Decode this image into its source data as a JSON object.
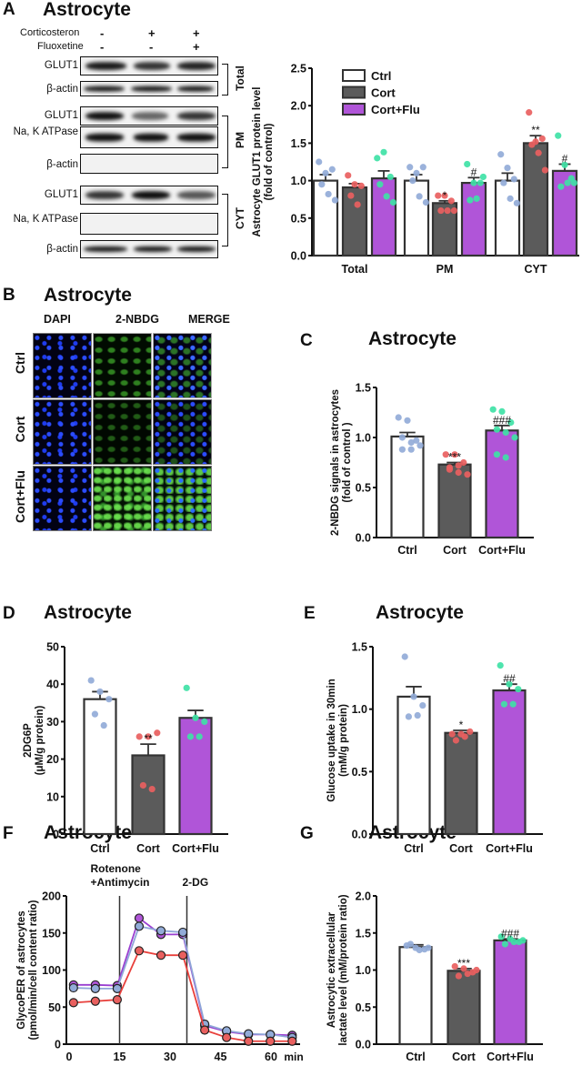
{
  "panels": {
    "A": {
      "letter": "A",
      "title": "Astrocyte"
    },
    "B": {
      "letter": "B",
      "title": "Astrocyte"
    },
    "C": {
      "letter": "C",
      "title": "Astrocyte"
    },
    "D": {
      "letter": "D",
      "title": "Astrocyte"
    },
    "E": {
      "letter": "E",
      "title": "Astrocyte"
    },
    "F": {
      "letter": "F",
      "title": "Astrocyte"
    },
    "G": {
      "letter": "G",
      "title": "Astrocyte"
    }
  },
  "western_blot": {
    "treatments": [
      {
        "label": "Corticosteron",
        "signs": [
          "-",
          "+",
          "+"
        ]
      },
      {
        "label": "Fluoxetine",
        "signs": [
          "-",
          "-",
          "+"
        ]
      }
    ],
    "rows": [
      "GLUT1",
      "β-actin",
      "GLUT1",
      "Na, K ATPase",
      "β-actin",
      "GLUT1",
      "Na, K ATPase",
      "β-actin"
    ],
    "fractions": [
      "Total",
      "PM",
      "CYT"
    ]
  },
  "micrographs": {
    "columns": [
      "DAPI",
      "2-NBDG",
      "MERGE"
    ],
    "rows": [
      "Ctrl",
      "Cort",
      "Cort+Flu"
    ]
  },
  "colors": {
    "ctrl_bar": "#ffffff",
    "cort_bar": "#5b5b5b",
    "flu_bar": "#b055d8",
    "ctrl_dot": "#92abd8",
    "cort_dot": "#e9605f",
    "flu_dot": "#3fe2a6",
    "line_ctrl": "#8fa6d8",
    "line_cort": "#e8403c",
    "line_flu": "#9a3ed0"
  },
  "chart_data": [
    {
      "id": "A",
      "type": "bar",
      "ylabel": "Astrocyte GLUT1 protein level\n(fold of control)",
      "ylim": [
        0,
        2.5
      ],
      "yticks": [
        "0.0",
        "0.5",
        "1.0",
        "1.5",
        "2.0",
        "2.5"
      ],
      "categories": [
        "Total",
        "PM",
        "CYT"
      ],
      "legend": {
        "position": "top-left",
        "entries": [
          "Ctrl",
          "Cort",
          "Cort+Flu"
        ]
      },
      "series": [
        {
          "name": "Ctrl",
          "values": [
            1.0,
            1.0,
            1.0
          ],
          "sem": [
            0.08,
            0.08,
            0.1
          ],
          "sig": [
            "",
            "",
            ""
          ],
          "points": [
            [
              1.25,
              1.1,
              1.15,
              0.95,
              0.82,
              0.74
            ],
            [
              1.18,
              1.1,
              1.18,
              1.0,
              0.79,
              0.71
            ],
            [
              1.35,
              1.17,
              1.02,
              0.97,
              0.76,
              0.7
            ]
          ]
        },
        {
          "name": "Cort",
          "values": [
            0.91,
            0.7,
            1.5
          ],
          "sem": [
            0.05,
            0.03,
            0.1
          ],
          "sig": [
            "",
            "*",
            "**"
          ],
          "points": [
            [
              1.07,
              0.95,
              0.93,
              0.8,
              0.68
            ],
            [
              0.8,
              0.8,
              0.73,
              0.6,
              0.6,
              0.6
            ],
            [
              1.91,
              1.52,
              1.56,
              1.48,
              1.37,
              1.14
            ]
          ]
        },
        {
          "name": "Cort+Flu",
          "values": [
            1.03,
            0.97,
            1.13
          ],
          "sem": [
            0.1,
            0.07,
            0.09
          ],
          "sig": [
            "",
            "#",
            "#"
          ],
          "points": [
            [
              1.3,
              1.38,
              1.05,
              0.95,
              0.79,
              0.71
            ],
            [
              1.22,
              0.97,
              0.97,
              0.74,
              0.76,
              1.05
            ],
            [
              1.6,
              1.21,
              1.03,
              0.92,
              0.97,
              0.97
            ]
          ]
        }
      ]
    },
    {
      "id": "C",
      "type": "bar",
      "ylabel": "2-NBDG signals in astrocytes\n(fold of control )",
      "ylim": [
        0,
        1.5
      ],
      "yticks": [
        "0.0",
        "0.5",
        "1.0",
        "1.5"
      ],
      "categories": [
        "Ctrl",
        "Cort",
        "Cort+Flu"
      ],
      "values": [
        1.01,
        0.73,
        1.07
      ],
      "sem": [
        0.04,
        0.02,
        0.05
      ],
      "sig": [
        "",
        "***",
        "###"
      ],
      "points": [
        [
          1.2,
          1.17,
          0.97,
          1.0,
          0.95,
          0.92,
          0.88,
          0.88
        ],
        [
          0.83,
          0.83,
          0.75,
          0.68,
          0.65,
          0.63,
          0.7,
          0.72
        ],
        [
          1.28,
          1.26,
          1.15,
          1.08,
          1.05,
          1.0,
          0.83,
          0.8
        ]
      ]
    },
    {
      "id": "D",
      "type": "bar",
      "ylabel": "2DG6P\n(μM/g protein)",
      "ylim": [
        0,
        50
      ],
      "yticks": [
        "0",
        "10",
        "20",
        "30",
        "40",
        "50"
      ],
      "categories": [
        "Ctrl",
        "Cort",
        "Cort+Flu"
      ],
      "values": [
        36,
        21,
        31
      ],
      "sem": [
        2,
        3,
        2
      ],
      "sig": [
        "",
        "**",
        ""
      ],
      "points": [
        [
          41,
          38,
          36,
          32,
          29
        ],
        [
          26,
          26,
          27,
          13,
          12
        ],
        [
          39,
          31,
          30,
          26,
          26
        ]
      ]
    },
    {
      "id": "E",
      "type": "bar",
      "ylabel": "Glucose uptake in 30min\n(mM/g protein)",
      "ylim": [
        0,
        1.5
      ],
      "yticks": [
        "0.0",
        "0.5",
        "1.0",
        "1.5"
      ],
      "categories": [
        "Ctrl",
        "Cort",
        "Cort+Flu"
      ],
      "values": [
        1.1,
        0.81,
        1.15
      ],
      "sem": [
        0.08,
        0.02,
        0.05
      ],
      "sig": [
        "",
        "*",
        "##"
      ],
      "points": [
        [
          1.42,
          1.1,
          1.03,
          0.94,
          0.95
        ],
        [
          0.8,
          0.8,
          0.82,
          0.75,
          0.78
        ],
        [
          1.35,
          1.2,
          1.16,
          1.04,
          1.04
        ]
      ]
    },
    {
      "id": "F",
      "type": "line",
      "ylabel": "GlycoPER of astrocytes\n(pmol/min/cell content ratio)",
      "xlabel": "min",
      "xlim": [
        0,
        68
      ],
      "ylim": [
        0,
        200
      ],
      "xticks": [
        "0",
        "15",
        "30",
        "45",
        "60"
      ],
      "yticks": [
        "0",
        "50",
        "100",
        "150",
        "200"
      ],
      "annotations": [
        {
          "x": 15,
          "text": "Rotenone\n+Antimycin"
        },
        {
          "x": 35,
          "text": "2-DG"
        }
      ],
      "x": [
        1.3,
        7.8,
        14.3,
        20.8,
        27.3,
        33.8,
        40.3,
        46.8,
        53.3,
        59.8,
        66.3
      ],
      "series": [
        {
          "group": "Cort+Flu",
          "values": [
            80,
            80,
            79,
            170,
            148,
            148,
            25,
            17,
            13,
            13,
            12
          ]
        },
        {
          "group": "Ctrl",
          "values": [
            76,
            75,
            75,
            159,
            153,
            151,
            27,
            18,
            14,
            13,
            9
          ]
        },
        {
          "group": "Cort",
          "values": [
            56,
            58,
            60,
            126,
            120,
            120,
            19,
            9,
            4,
            4,
            4
          ]
        }
      ]
    },
    {
      "id": "G",
      "type": "bar",
      "ylabel": "Astrocytic extracellular\nlactate level (mM/protein ratio)",
      "ylim": [
        0,
        2.0
      ],
      "yticks": [
        "0.0",
        "0.5",
        "1.0",
        "1.5",
        "2.0"
      ],
      "categories": [
        "Ctrl",
        "Cort",
        "Cort+Flu"
      ],
      "values": [
        1.31,
        0.99,
        1.4
      ],
      "sem": [
        0.03,
        0.03,
        0.02
      ],
      "sig": [
        "",
        "***",
        "###"
      ],
      "points": [
        [
          1.33,
          1.3,
          1.28,
          1.35,
          1.27,
          1.3
        ],
        [
          1.05,
          1.02,
          0.97,
          0.92,
          0.95,
          1.0
        ],
        [
          1.45,
          1.42,
          1.38,
          1.35,
          1.38,
          1.4
        ]
      ]
    }
  ]
}
